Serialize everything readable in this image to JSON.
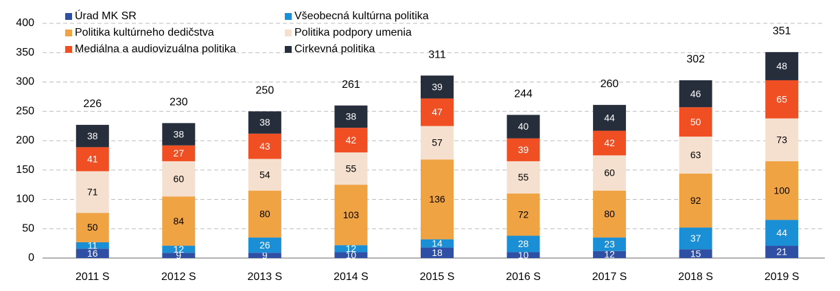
{
  "chart_data": {
    "type": "stacked_bar",
    "categories": [
      "2011 S",
      "2012 S",
      "2013 S",
      "2014 S",
      "2015 S",
      "2016 S",
      "2017 S",
      "2018 S",
      "2019 S"
    ],
    "series": [
      {
        "name": "Úrad MK SR",
        "color": "#2e4fa3",
        "values": [
          16,
          9,
          9,
          10,
          18,
          10,
          12,
          15,
          21
        ]
      },
      {
        "name": "Všeobecná kultúrna politika",
        "color": "#1a8fd6",
        "values": [
          11,
          12,
          26,
          12,
          14,
          28,
          23,
          37,
          44
        ]
      },
      {
        "name": "Politika kultúrneho dedičstva",
        "color": "#f0a342",
        "values": [
          50,
          84,
          80,
          103,
          136,
          72,
          80,
          92,
          100
        ]
      },
      {
        "name": "Politika podpory umenia",
        "color": "#f5e0cf",
        "values": [
          71,
          60,
          54,
          55,
          57,
          55,
          60,
          63,
          73
        ]
      },
      {
        "name": "Mediálna a audiovizuálna politika",
        "color": "#f04e23",
        "values": [
          41,
          27,
          43,
          42,
          47,
          39,
          42,
          50,
          65
        ]
      },
      {
        "name": "Cirkevná politika",
        "color": "#262d3b",
        "values": [
          38,
          38,
          38,
          38,
          39,
          40,
          44,
          46,
          48
        ]
      }
    ],
    "totals": [
      226,
      230,
      250,
      261,
      311,
      244,
      260,
      302,
      351
    ],
    "ylim": [
      0,
      400
    ],
    "yticks": [
      0,
      50,
      100,
      150,
      200,
      250,
      300,
      350,
      400
    ],
    "grid": true,
    "legend": "top-left"
  }
}
